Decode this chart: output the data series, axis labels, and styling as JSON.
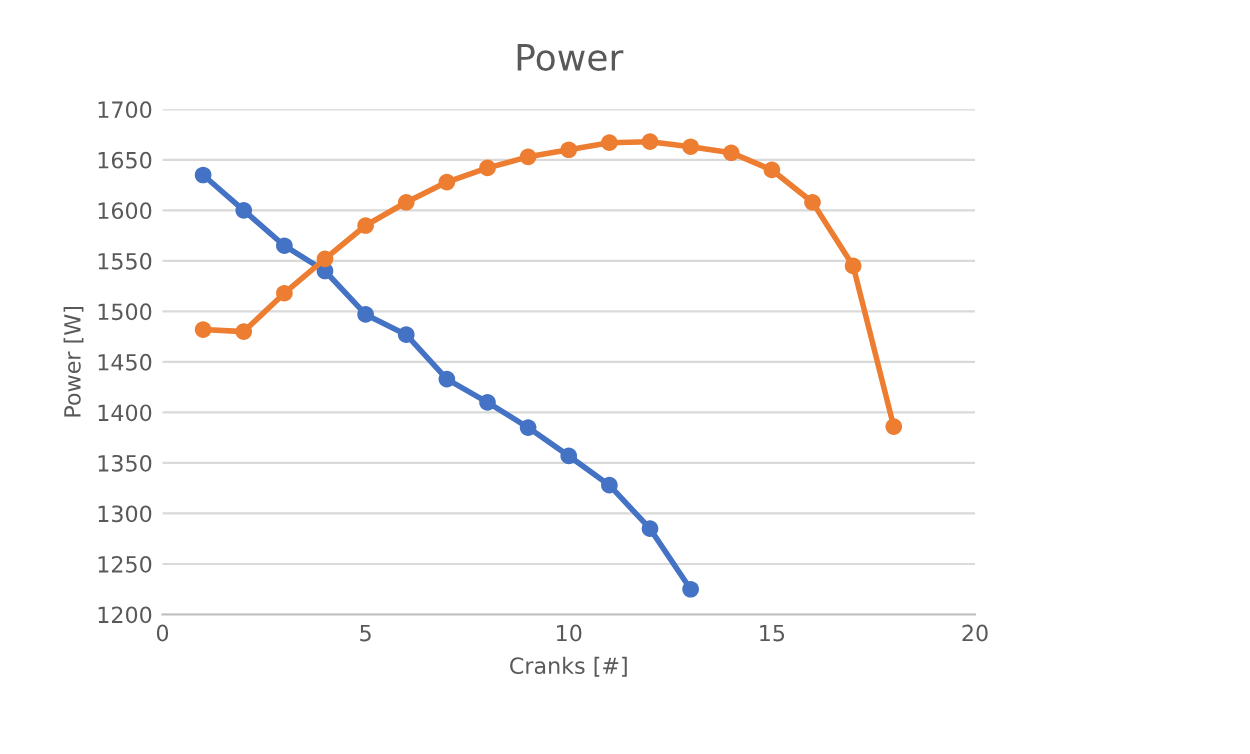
{
  "chart_data": {
    "type": "line",
    "title": "Power",
    "xlabel": "Cranks [#]",
    "ylabel": "Power [W]",
    "xlim": [
      0,
      20
    ],
    "xticks": [
      0,
      5,
      10,
      15,
      20
    ],
    "ylim": [
      1200,
      1700
    ],
    "yticks": [
      1200,
      1250,
      1300,
      1350,
      1400,
      1450,
      1500,
      1550,
      1600,
      1650,
      1700
    ],
    "grid": "y",
    "marker": "circle",
    "line_style": "solid",
    "series": [
      {
        "color": "#4472c4",
        "x": [
          1,
          2,
          3,
          4,
          5,
          6,
          7,
          8,
          9,
          10,
          11,
          12,
          13
        ],
        "values": [
          1635,
          1600,
          1565,
          1540,
          1497,
          1477,
          1433,
          1410,
          1385,
          1357,
          1328,
          1285,
          1225
        ]
      },
      {
        "color": "#ed7d31",
        "x": [
          1,
          2,
          3,
          4,
          5,
          6,
          7,
          8,
          9,
          10,
          11,
          12,
          13,
          14,
          15,
          16,
          17,
          18
        ],
        "values": [
          1482,
          1480,
          1518,
          1552,
          1585,
          1608,
          1628,
          1642,
          1653,
          1660,
          1667,
          1668,
          1663,
          1657,
          1640,
          1608,
          1545,
          1386
        ]
      }
    ]
  }
}
